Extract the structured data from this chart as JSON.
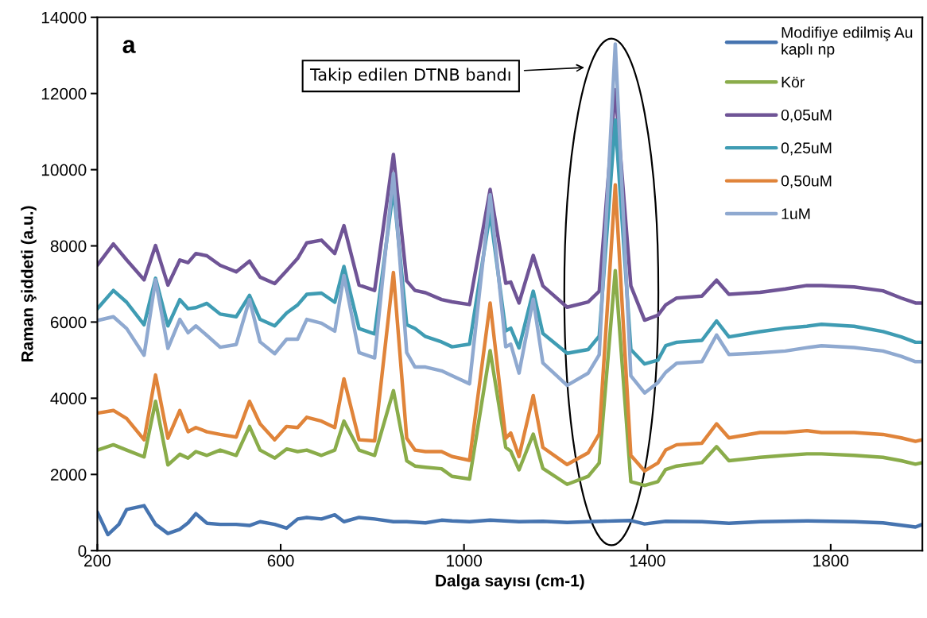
{
  "chart_data": {
    "type": "line",
    "xlabel": "Dalga sayısı (cm-1)",
    "ylabel": "Raman şiddeti (a.u.)",
    "xlim": [
      200,
      2000
    ],
    "xticks": [
      200,
      600,
      1000,
      1400,
      1800
    ],
    "ylim": [
      0,
      14000
    ],
    "yticks": [
      0,
      2000,
      4000,
      6000,
      8000,
      10000,
      12000,
      14000
    ],
    "grid": false,
    "legend": "top right",
    "marker": "none",
    "line_style": "solid",
    "annotations": [
      "a",
      "Takip edilen DTNB bandı"
    ],
    "x": [
      200,
      235,
      264,
      302,
      327,
      354,
      380,
      398,
      415,
      439,
      468,
      503,
      532,
      555,
      587,
      613,
      637,
      657,
      689,
      718,
      738,
      771,
      805,
      846,
      875,
      893,
      916,
      951,
      974,
      1012,
      1057,
      1091,
      1102,
      1120,
      1151,
      1172,
      1225,
      1271,
      1295,
      1330,
      1364,
      1394,
      1423,
      1440,
      1464,
      1519,
      1551,
      1578,
      1646,
      1701,
      1748,
      1780,
      1851,
      1914,
      1954,
      1985,
      2000
    ],
    "series": [
      {
        "name": "Modifiye edilmiş Au\nkaplı np",
        "color": "#4674b0",
        "x": [
          200,
          223,
          247,
          264,
          302,
          327,
          354,
          380,
          398,
          415,
          439,
          468,
          503,
          532,
          555,
          587,
          613,
          637,
          657,
          689,
          718,
          738,
          771,
          805,
          846,
          875,
          916,
          951,
          974,
          1012,
          1057,
          1120,
          1172,
          1225,
          1271,
          1330,
          1364,
          1394,
          1440,
          1519,
          1578,
          1646,
          1748,
          1851,
          1914,
          1985,
          2000
        ],
        "values": [
          1010,
          420,
          690,
          1080,
          1180,
          690,
          450,
          560,
          730,
          970,
          720,
          690,
          690,
          660,
          760,
          690,
          590,
          830,
          870,
          830,
          940,
          760,
          870,
          830,
          760,
          760,
          730,
          800,
          780,
          760,
          800,
          760,
          770,
          740,
          760,
          780,
          790,
          700,
          770,
          760,
          720,
          760,
          780,
          760,
          730,
          620,
          690
        ]
      },
      {
        "name": "Kör",
        "color": "#8aac4a",
        "values": [
          2640,
          2780,
          2640,
          2460,
          3920,
          2250,
          2530,
          2430,
          2600,
          2500,
          2640,
          2500,
          3260,
          2640,
          2430,
          2670,
          2600,
          2640,
          2500,
          2640,
          3400,
          2640,
          2500,
          4200,
          2360,
          2220,
          2190,
          2150,
          1950,
          1880,
          5250,
          2710,
          2610,
          2120,
          3060,
          2160,
          1740,
          1950,
          2300,
          7350,
          1810,
          1710,
          1810,
          2130,
          2220,
          2310,
          2730,
          2360,
          2450,
          2500,
          2540,
          2540,
          2500,
          2450,
          2360,
          2270,
          2310
        ]
      },
      {
        "name": "0,05uM",
        "color": "#6f5496",
        "values": [
          7490,
          8050,
          7630,
          7110,
          8010,
          6970,
          7630,
          7560,
          7800,
          7740,
          7490,
          7320,
          7600,
          7180,
          7010,
          7350,
          7670,
          8080,
          8150,
          7800,
          8530,
          6970,
          6830,
          10400,
          7080,
          6830,
          6770,
          6590,
          6530,
          6460,
          9480,
          7020,
          7050,
          6500,
          7750,
          6950,
          6390,
          6530,
          6810,
          12100,
          6950,
          6050,
          6180,
          6450,
          6630,
          6680,
          7100,
          6730,
          6780,
          6870,
          6960,
          6960,
          6920,
          6820,
          6630,
          6500,
          6500
        ]
      },
      {
        "name": "0,25uM",
        "color": "#3f9cb3",
        "values": [
          6350,
          6830,
          6520,
          5930,
          7150,
          5900,
          6590,
          6350,
          6380,
          6490,
          6210,
          6140,
          6700,
          6070,
          5900,
          6240,
          6450,
          6730,
          6760,
          6520,
          7460,
          5830,
          5690,
          9500,
          5930,
          5830,
          5620,
          5480,
          5350,
          5420,
          8860,
          5770,
          5840,
          5320,
          6810,
          5700,
          5180,
          5280,
          5630,
          11300,
          5280,
          4900,
          5000,
          5380,
          5470,
          5520,
          6030,
          5610,
          5750,
          5840,
          5890,
          5940,
          5890,
          5750,
          5610,
          5470,
          5470
        ]
      },
      {
        "name": "0,50uM",
        "color": "#e0843a",
        "values": [
          3610,
          3680,
          3470,
          2910,
          4610,
          2950,
          3680,
          3120,
          3230,
          3120,
          3050,
          2980,
          3920,
          3330,
          2910,
          3260,
          3230,
          3500,
          3400,
          3230,
          4510,
          2910,
          2880,
          7300,
          2950,
          2640,
          2600,
          2600,
          2470,
          2370,
          6500,
          2950,
          3090,
          2470,
          4070,
          2710,
          2260,
          2570,
          3060,
          9600,
          2500,
          2090,
          2300,
          2640,
          2780,
          2820,
          3330,
          2960,
          3100,
          3100,
          3150,
          3100,
          3100,
          3050,
          2960,
          2870,
          2910
        ]
      },
      {
        "name": "1uM",
        "color": "#8fa9d0",
        "values": [
          6040,
          6140,
          5830,
          5130,
          7110,
          5310,
          6070,
          5720,
          5900,
          5650,
          5340,
          5410,
          6590,
          5480,
          5170,
          5550,
          5550,
          6070,
          5970,
          5760,
          7220,
          5200,
          5060,
          9900,
          5200,
          4820,
          4820,
          4720,
          4590,
          4380,
          9340,
          5350,
          5420,
          4660,
          6600,
          4930,
          4340,
          4660,
          5140,
          13300,
          4590,
          4140,
          4410,
          4680,
          4920,
          4960,
          5660,
          5150,
          5190,
          5240,
          5330,
          5380,
          5330,
          5240,
          5100,
          4960,
          4960
        ]
      }
    ]
  }
}
